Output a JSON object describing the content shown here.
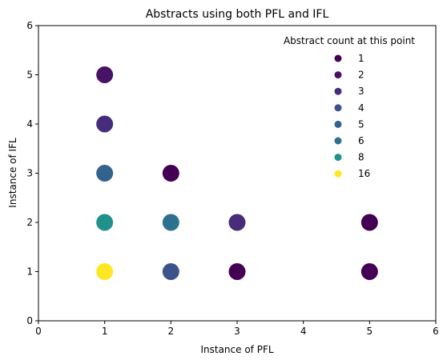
{
  "chart_data": {
    "type": "scatter",
    "title": "Abstracts using both PFL and IFL",
    "xlabel": "Instance of PFL",
    "ylabel": "Instance of IFL",
    "xlim": [
      0,
      6
    ],
    "ylim": [
      0,
      6
    ],
    "xticks": [
      "0",
      "1",
      "2",
      "3",
      "4",
      "5",
      "6"
    ],
    "yticks": [
      "0",
      "1",
      "2",
      "3",
      "4",
      "5",
      "6"
    ],
    "grid": false,
    "legend": {
      "title": "Abstract count at this point",
      "placement": "top-right",
      "entries": [
        {
          "label": "1",
          "color": "#440154"
        },
        {
          "label": "2",
          "color": "#471365"
        },
        {
          "label": "3",
          "color": "#472c7a"
        },
        {
          "label": "4",
          "color": "#3b528b"
        },
        {
          "label": "5",
          "color": "#33638d"
        },
        {
          "label": "6",
          "color": "#2c728e"
        },
        {
          "label": "8",
          "color": "#21918c"
        },
        {
          "label": "16",
          "color": "#fde725"
        }
      ]
    },
    "points": [
      {
        "x": 1,
        "y": 1,
        "count": 16,
        "color": "#fde725"
      },
      {
        "x": 1,
        "y": 2,
        "count": 8,
        "color": "#21918c"
      },
      {
        "x": 1,
        "y": 3,
        "count": 5,
        "color": "#33638d"
      },
      {
        "x": 1,
        "y": 4,
        "count": 3,
        "color": "#472c7a"
      },
      {
        "x": 1,
        "y": 5,
        "count": 2,
        "color": "#471365"
      },
      {
        "x": 2,
        "y": 1,
        "count": 4,
        "color": "#3b528b"
      },
      {
        "x": 2,
        "y": 2,
        "count": 6,
        "color": "#2c728e"
      },
      {
        "x": 2,
        "y": 3,
        "count": 1,
        "color": "#440154"
      },
      {
        "x": 3,
        "y": 1,
        "count": 1,
        "color": "#440154"
      },
      {
        "x": 3,
        "y": 2,
        "count": 3,
        "color": "#472c7a"
      },
      {
        "x": 5,
        "y": 1,
        "count": 1,
        "color": "#440154"
      },
      {
        "x": 5,
        "y": 2,
        "count": 1,
        "color": "#440154"
      }
    ]
  }
}
